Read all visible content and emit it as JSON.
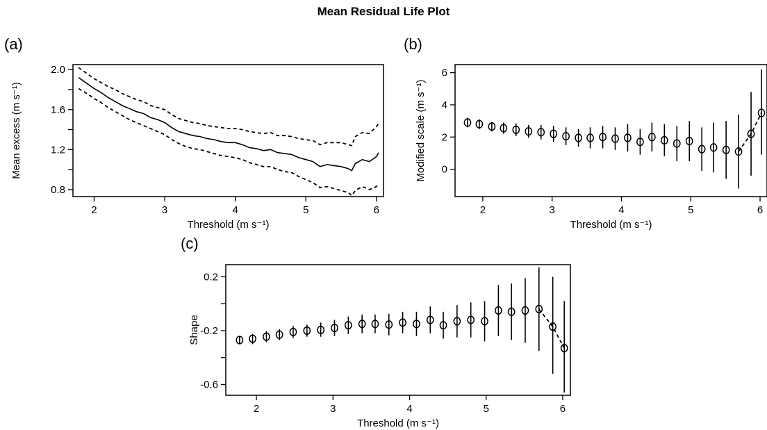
{
  "figure": {
    "title": "Mean Residual Life Plot"
  },
  "chart_data": [
    {
      "id": "a",
      "panel_label": "(a)",
      "type": "line",
      "xlabel": "Threshold (m s⁻¹)",
      "ylabel": "Mean excess (m s⁻¹)",
      "xlim": [
        1.7,
        6.1
      ],
      "ylim": [
        0.73,
        2.05
      ],
      "xticks": [
        2,
        3,
        4,
        5,
        6
      ],
      "yticks": [
        0.8,
        1.0,
        1.2,
        1.4,
        1.6,
        1.8,
        2.0
      ],
      "ytick_labels": [
        "0.8",
        "",
        "1.2",
        "",
        "1.6",
        "",
        "2.0"
      ],
      "x": [
        1.78,
        1.9,
        2.0,
        2.1,
        2.2,
        2.3,
        2.4,
        2.5,
        2.6,
        2.7,
        2.8,
        2.9,
        3.0,
        3.1,
        3.2,
        3.3,
        3.4,
        3.5,
        3.6,
        3.7,
        3.8,
        3.9,
        4.0,
        4.1,
        4.2,
        4.3,
        4.4,
        4.5,
        4.6,
        4.7,
        4.8,
        4.9,
        5.0,
        5.1,
        5.2,
        5.3,
        5.4,
        5.5,
        5.6,
        5.65,
        5.7,
        5.8,
        5.9,
        6.0,
        6.03
      ],
      "series": [
        {
          "style": "solid",
          "values": [
            1.92,
            1.86,
            1.81,
            1.77,
            1.72,
            1.68,
            1.64,
            1.61,
            1.58,
            1.56,
            1.52,
            1.5,
            1.47,
            1.42,
            1.38,
            1.36,
            1.34,
            1.33,
            1.31,
            1.3,
            1.28,
            1.27,
            1.27,
            1.25,
            1.22,
            1.21,
            1.19,
            1.2,
            1.17,
            1.16,
            1.15,
            1.12,
            1.1,
            1.08,
            1.03,
            1.05,
            1.04,
            1.03,
            1.01,
            0.99,
            1.06,
            1.1,
            1.08,
            1.13,
            1.17
          ]
        },
        {
          "style": "dashed",
          "values": [
            2.02,
            1.96,
            1.91,
            1.87,
            1.83,
            1.8,
            1.76,
            1.73,
            1.7,
            1.68,
            1.64,
            1.62,
            1.6,
            1.55,
            1.51,
            1.49,
            1.47,
            1.46,
            1.44,
            1.43,
            1.42,
            1.41,
            1.41,
            1.4,
            1.38,
            1.37,
            1.36,
            1.37,
            1.34,
            1.34,
            1.33,
            1.31,
            1.3,
            1.29,
            1.25,
            1.27,
            1.27,
            1.27,
            1.25,
            1.24,
            1.33,
            1.37,
            1.36,
            1.43,
            1.46
          ]
        },
        {
          "style": "dashed",
          "values": [
            1.81,
            1.76,
            1.71,
            1.67,
            1.62,
            1.58,
            1.54,
            1.5,
            1.47,
            1.44,
            1.41,
            1.38,
            1.35,
            1.3,
            1.26,
            1.23,
            1.21,
            1.2,
            1.18,
            1.16,
            1.14,
            1.13,
            1.12,
            1.1,
            1.07,
            1.05,
            1.03,
            1.03,
            1.0,
            0.98,
            0.97,
            0.93,
            0.9,
            0.87,
            0.82,
            0.83,
            0.81,
            0.79,
            0.77,
            0.74,
            0.79,
            0.83,
            0.8,
            0.83,
            0.86
          ]
        }
      ]
    },
    {
      "id": "b",
      "panel_label": "(b)",
      "type": "scatter",
      "xlabel": "Threshold (m s⁻¹)",
      "ylabel": "Modified scale (m s⁻¹)",
      "xlim": [
        1.6,
        6.1
      ],
      "ylim": [
        -1.7,
        6.5
      ],
      "xticks": [
        2,
        3,
        4,
        5,
        6
      ],
      "yticks": [
        0,
        2,
        4,
        6
      ],
      "ytick_labels": [
        "0",
        "2",
        "4",
        "6"
      ],
      "x": [
        1.78,
        1.95,
        2.13,
        2.3,
        2.48,
        2.66,
        2.84,
        3.02,
        3.2,
        3.38,
        3.55,
        3.73,
        3.91,
        4.09,
        4.27,
        4.44,
        4.62,
        4.8,
        4.98,
        5.16,
        5.33,
        5.51,
        5.69,
        5.87,
        6.02
      ],
      "values": [
        2.9,
        2.8,
        2.65,
        2.55,
        2.45,
        2.35,
        2.3,
        2.2,
        2.05,
        1.95,
        1.95,
        2.0,
        1.9,
        1.95,
        1.7,
        2.0,
        1.8,
        1.6,
        1.75,
        1.25,
        1.35,
        1.2,
        1.1,
        2.2,
        3.5
      ],
      "err_low": [
        2.6,
        2.5,
        2.35,
        2.2,
        2.05,
        1.95,
        1.85,
        1.7,
        1.5,
        1.4,
        1.3,
        1.3,
        1.2,
        1.1,
        0.9,
        1.1,
        0.8,
        0.5,
        0.5,
        -0.1,
        -0.2,
        -0.6,
        -1.2,
        -0.4,
        0.9
      ],
      "err_high": [
        3.2,
        3.1,
        2.95,
        2.9,
        2.85,
        2.75,
        2.75,
        2.7,
        2.6,
        2.5,
        2.6,
        2.7,
        2.6,
        2.8,
        2.5,
        2.9,
        2.8,
        2.7,
        3.0,
        2.6,
        2.9,
        3.0,
        3.4,
        4.8,
        6.2
      ],
      "trailing_dashed": true
    },
    {
      "id": "c",
      "panel_label": "(c)",
      "type": "scatter",
      "xlabel": "Threshold (m s⁻¹)",
      "ylabel": "Shape",
      "xlim": [
        1.6,
        6.1
      ],
      "ylim": [
        -0.68,
        0.29
      ],
      "xticks": [
        2,
        3,
        4,
        5,
        6
      ],
      "yticks": [
        -0.6,
        -0.4,
        -0.2,
        0.0,
        0.2
      ],
      "ytick_labels": [
        "-0.6",
        "",
        "-0.2",
        "",
        "0.2"
      ],
      "x": [
        1.78,
        1.95,
        2.13,
        2.3,
        2.48,
        2.66,
        2.84,
        3.02,
        3.2,
        3.38,
        3.55,
        3.73,
        3.91,
        4.09,
        4.27,
        4.44,
        4.62,
        4.8,
        4.98,
        5.16,
        5.33,
        5.51,
        5.69,
        5.87,
        6.02
      ],
      "values": [
        -0.27,
        -0.26,
        -0.245,
        -0.23,
        -0.21,
        -0.2,
        -0.195,
        -0.18,
        -0.16,
        -0.15,
        -0.15,
        -0.155,
        -0.14,
        -0.15,
        -0.12,
        -0.16,
        -0.13,
        -0.12,
        -0.13,
        -0.05,
        -0.06,
        -0.05,
        -0.04,
        -0.17,
        -0.33
      ],
      "err_low": [
        -0.3,
        -0.3,
        -0.285,
        -0.27,
        -0.255,
        -0.245,
        -0.245,
        -0.24,
        -0.225,
        -0.22,
        -0.22,
        -0.235,
        -0.22,
        -0.24,
        -0.22,
        -0.26,
        -0.25,
        -0.25,
        -0.28,
        -0.24,
        -0.27,
        -0.29,
        -0.35,
        -0.52,
        -0.66
      ],
      "err_high": [
        -0.24,
        -0.225,
        -0.205,
        -0.19,
        -0.165,
        -0.155,
        -0.14,
        -0.12,
        -0.095,
        -0.08,
        -0.08,
        -0.075,
        -0.06,
        -0.06,
        -0.02,
        -0.06,
        -0.01,
        0.01,
        0.02,
        0.14,
        0.15,
        0.19,
        0.27,
        0.2,
        0.02
      ],
      "trailing_dashed": true
    }
  ]
}
